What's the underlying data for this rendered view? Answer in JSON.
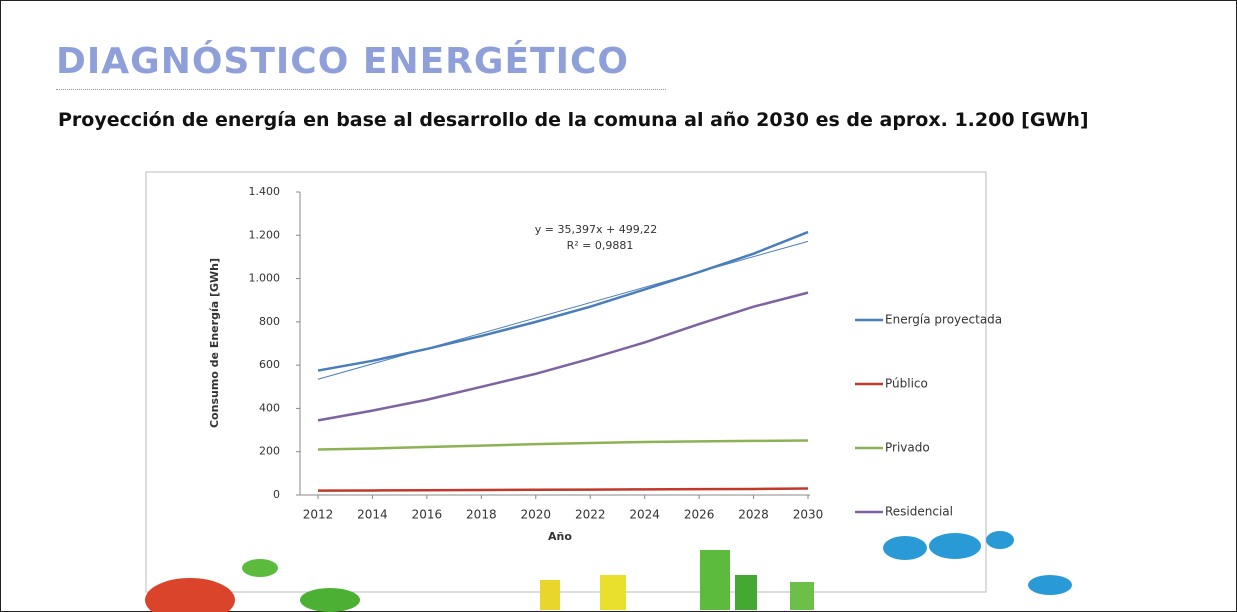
{
  "header": {
    "title": "DIAGNÓSTICO ENERGÉTICO",
    "subtitle": "Proyección de energía en base al desarrollo de la comuna al año 2030 es de aprox. 1.200 [GWh]"
  },
  "chart_data": {
    "type": "line",
    "x": [
      2012,
      2014,
      2016,
      2018,
      2020,
      2022,
      2024,
      2026,
      2028,
      2030
    ],
    "xlim": [
      2012,
      2030
    ],
    "xticks": [
      2012,
      2014,
      2016,
      2018,
      2020,
      2022,
      2024,
      2026,
      2028,
      2030
    ],
    "ylim": [
      0,
      1400
    ],
    "yticks": [
      0,
      200,
      400,
      600,
      800,
      {
        "value": 1000,
        "label": "1.000"
      },
      {
        "value": 1200,
        "label": "1.200"
      },
      {
        "value": 1400,
        "label": "1.400"
      }
    ],
    "x_label": "Año",
    "y_label": "Consumo de Energía [GWh]",
    "series": [
      {
        "name": "Energía proyectada",
        "color": "#4a7ebb",
        "values": [
          575,
          620,
          675,
          735,
          800,
          870,
          950,
          1030,
          1115,
          1215
        ]
      },
      {
        "name": "Público",
        "color": "#c0392b",
        "values": [
          20,
          21,
          22,
          23,
          24,
          25,
          26,
          27,
          28,
          30
        ]
      },
      {
        "name": "Privado",
        "color": "#8db255",
        "values": [
          210,
          215,
          222,
          228,
          235,
          240,
          245,
          248,
          250,
          252
        ]
      },
      {
        "name": "Residencial",
        "color": "#7e62a1",
        "values": [
          345,
          390,
          440,
          500,
          560,
          630,
          705,
          790,
          870,
          935
        ]
      }
    ],
    "trendline": {
      "x": [
        2012,
        2030
      ],
      "values": [
        535,
        1172
      ],
      "color": "#4a7ebb"
    },
    "annotations": [
      "y = 35,397x + 499,22",
      "R² = 0,9881"
    ]
  }
}
